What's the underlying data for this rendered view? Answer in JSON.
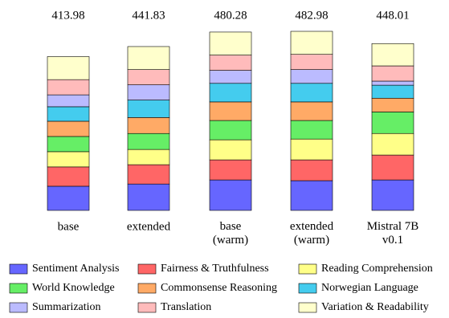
{
  "chart_data": {
    "type": "stacked-bar",
    "categories": [
      "base",
      "extended",
      "base\n(warm)",
      "extended\n(warm)",
      "Mistral 7B\nv0.1"
    ],
    "totals": [
      413.98,
      441.83,
      480.28,
      482.98,
      448.01
    ],
    "series": [
      {
        "name": "Sentiment Analysis",
        "color": "#6666ff",
        "values": [
          65,
          71,
          82,
          80,
          82
        ]
      },
      {
        "name": "Fairness & Truthfulness",
        "color": "#ff6666",
        "values": [
          52,
          52,
          54,
          56,
          67
        ]
      },
      {
        "name": "Reading Comprehension",
        "color": "#ffff88",
        "values": [
          41,
          41,
          54,
          56,
          58
        ]
      },
      {
        "name": "World Knowledge",
        "color": "#66ee66",
        "values": [
          41,
          43,
          52,
          50,
          58
        ]
      },
      {
        "name": "Commonsense Reasoning",
        "color": "#ffaa66",
        "values": [
          41,
          43,
          50,
          50,
          37
        ]
      },
      {
        "name": "Norwegian Language",
        "color": "#44ccee",
        "values": [
          39,
          47,
          50,
          50,
          35
        ]
      },
      {
        "name": "Summarization",
        "color": "#bbbbff",
        "values": [
          32,
          41,
          35,
          37,
          11
        ]
      },
      {
        "name": "Translation",
        "color": "#ffbbbb",
        "values": [
          41,
          41,
          41,
          41,
          41
        ]
      },
      {
        "name": "Variation & Readability",
        "color": "#ffffcc",
        "values": [
          62,
          62,
          62,
          62,
          60
        ]
      }
    ]
  }
}
